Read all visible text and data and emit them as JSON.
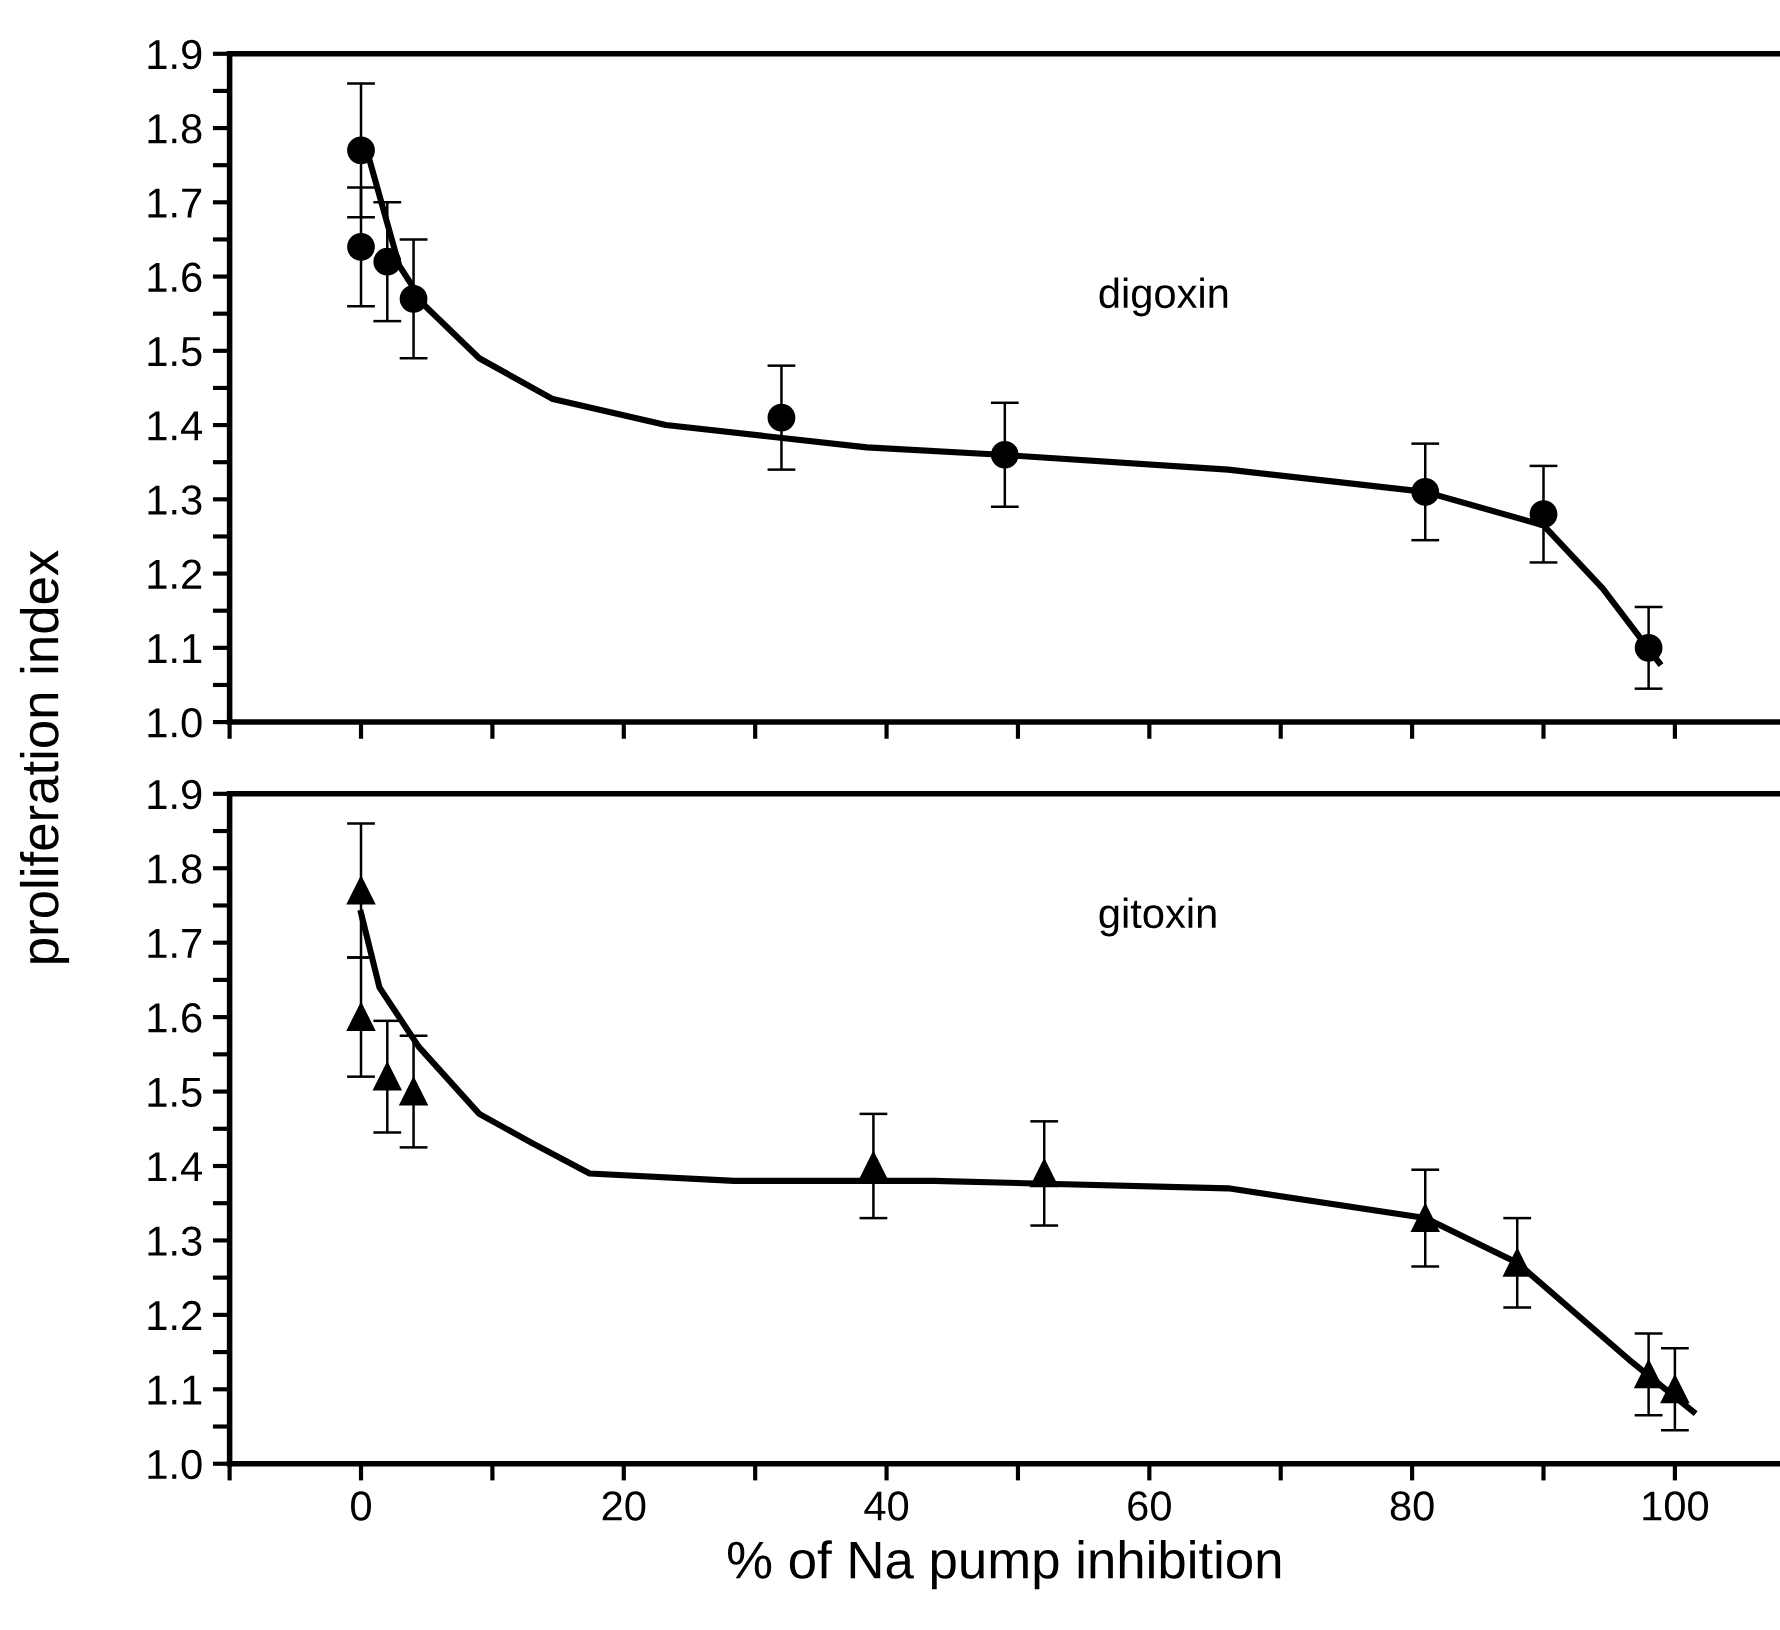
{
  "chart_data": [
    {
      "type": "scatter",
      "ylabel": "proliferation index",
      "annotations": [
        "digoxin"
      ],
      "xlim": [
        -10,
        108
      ],
      "ylim": [
        1.0,
        1.9
      ],
      "tick_labels": "y",
      "marker": "circle",
      "xticks": [
        {
          "value": -10,
          "label": null
        },
        {
          "value": 0,
          "label": null
        },
        {
          "value": 10,
          "label": null
        },
        {
          "value": 20,
          "label": null
        },
        {
          "value": 30,
          "label": null
        },
        {
          "value": 40,
          "label": null
        },
        {
          "value": 50,
          "label": null
        },
        {
          "value": 60,
          "label": null
        },
        {
          "value": 70,
          "label": null
        },
        {
          "value": 80,
          "label": null
        },
        {
          "value": 90,
          "label": null
        },
        {
          "value": 100,
          "label": null
        }
      ],
      "yticks": [
        {
          "value": 1.0,
          "label": "1.0"
        },
        {
          "value": 1.05,
          "label": null
        },
        {
          "value": 1.1,
          "label": "1.1"
        },
        {
          "value": 1.15,
          "label": null
        },
        {
          "value": 1.2,
          "label": "1.2"
        },
        {
          "value": 1.25,
          "label": null
        },
        {
          "value": 1.3,
          "label": "1.3"
        },
        {
          "value": 1.35,
          "label": null
        },
        {
          "value": 1.4,
          "label": "1.4"
        },
        {
          "value": 1.45,
          "label": null
        },
        {
          "value": 1.5,
          "label": "1.5"
        },
        {
          "value": 1.55,
          "label": null
        },
        {
          "value": 1.6,
          "label": "1.6"
        },
        {
          "value": 1.65,
          "label": null
        },
        {
          "value": 1.7,
          "label": "1.7"
        },
        {
          "value": 1.75,
          "label": null
        },
        {
          "value": 1.8,
          "label": "1.8"
        },
        {
          "value": 1.85,
          "label": null
        },
        {
          "value": 1.9,
          "label": "1.9"
        }
      ],
      "series": [
        {
          "color": "#000000",
          "x": [
            0,
            0,
            2,
            4,
            32,
            49,
            81,
            90,
            98
          ],
          "values": [
            1.77,
            1.64,
            1.62,
            1.57,
            1.41,
            1.36,
            1.31,
            1.28,
            1.1
          ],
          "errors": [
            0.09,
            0.08,
            0.08,
            0.08,
            0.07,
            0.07,
            0.065,
            0.065,
            0.055
          ]
        },
        {
          "type": "line",
          "color": "#000000",
          "marker": "none",
          "x": [
            0.6,
            2.9,
            4.9,
            9,
            14.6,
            23.2,
            38.5,
            48.7,
            66,
            81,
            90,
            94.5,
            98.8
          ],
          "values": [
            1.76,
            1.615,
            1.56,
            1.49,
            1.435,
            1.4,
            1.37,
            1.36,
            1.34,
            1.31,
            1.265,
            1.18,
            1.08
          ]
        }
      ]
    },
    {
      "type": "scatter",
      "xlabel": "% of Na pump inhibition",
      "annotations": [
        "gitoxin"
      ],
      "xlim": [
        -10,
        108
      ],
      "ylim": [
        1.0,
        1.9
      ],
      "marker": "triangle",
      "xticks": [
        {
          "value": -10,
          "label": null
        },
        0,
        {
          "value": 10,
          "label": null
        },
        20,
        {
          "value": 30,
          "label": null
        },
        40,
        {
          "value": 50,
          "label": null
        },
        60,
        {
          "value": 70,
          "label": null
        },
        80,
        {
          "value": 90,
          "label": null
        },
        100
      ],
      "yticks": [
        {
          "value": 1.0,
          "label": "1.0"
        },
        {
          "value": 1.05,
          "label": null
        },
        {
          "value": 1.1,
          "label": "1.1"
        },
        {
          "value": 1.15,
          "label": null
        },
        {
          "value": 1.2,
          "label": "1.2"
        },
        {
          "value": 1.25,
          "label": null
        },
        {
          "value": 1.3,
          "label": "1.3"
        },
        {
          "value": 1.35,
          "label": null
        },
        {
          "value": 1.4,
          "label": "1.4"
        },
        {
          "value": 1.45,
          "label": null
        },
        {
          "value": 1.5,
          "label": "1.5"
        },
        {
          "value": 1.55,
          "label": null
        },
        {
          "value": 1.6,
          "label": "1.6"
        },
        {
          "value": 1.65,
          "label": null
        },
        {
          "value": 1.7,
          "label": "1.7"
        },
        {
          "value": 1.75,
          "label": null
        },
        {
          "value": 1.8,
          "label": "1.8"
        },
        {
          "value": 1.85,
          "label": null
        },
        {
          "value": 1.9,
          "label": "1.9"
        }
      ],
      "series": [
        {
          "color": "#000000",
          "x": [
            0,
            0,
            2,
            4,
            39,
            52,
            81,
            88,
            98,
            100
          ],
          "values": [
            1.77,
            1.6,
            1.52,
            1.5,
            1.4,
            1.39,
            1.33,
            1.27,
            1.12,
            1.1
          ],
          "errors": [
            0.09,
            0.08,
            0.075,
            0.075,
            0.07,
            0.07,
            0.065,
            0.06,
            0.055,
            0.055
          ]
        },
        {
          "type": "line",
          "color": "#000000",
          "marker": "none",
          "x": [
            0,
            1.4,
            4.4,
            9,
            13.1,
            17.4,
            28.4,
            43.6,
            66,
            81,
            88,
            96.5,
            101.4
          ],
          "values": [
            1.74,
            1.64,
            1.56,
            1.47,
            1.43,
            1.39,
            1.38,
            1.38,
            1.37,
            1.33,
            1.27,
            1.14,
            1.07
          ]
        }
      ]
    }
  ]
}
